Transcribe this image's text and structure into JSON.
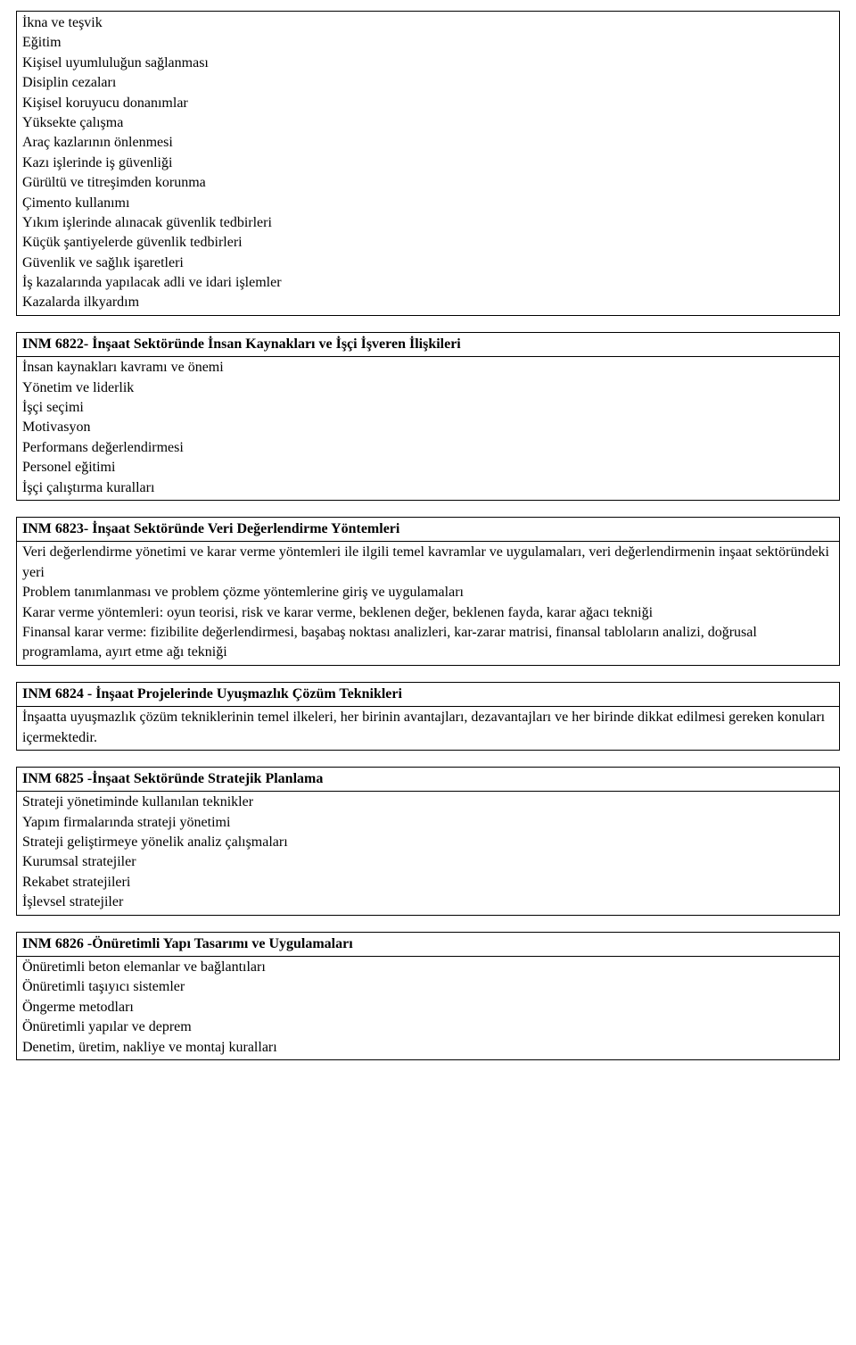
{
  "box0": {
    "lines": [
      "İkna ve teşvik",
      "Eğitim",
      "Kişisel uyumluluğun sağlanması",
      "Disiplin cezaları",
      "Kişisel koruyucu donanımlar",
      "Yüksekte çalışma",
      "Araç kazlarının önlenmesi",
      "Kazı işlerinde iş güvenliği",
      "Gürültü ve titreşimden korunma",
      "Çimento kullanımı",
      "Yıkım işlerinde alınacak güvenlik tedbirleri",
      "Küçük şantiyelerde güvenlik tedbirleri",
      "Güvenlik ve sağlık işaretleri",
      "İş kazalarında yapılacak adli ve idari işlemler",
      "Kazalarda ilkyardım"
    ]
  },
  "sections": [
    {
      "title": "INM 6822- İnşaat Sektöründe İnsan Kaynakları ve İşçi İşveren İlişkileri",
      "lines": [
        "İnsan kaynakları kavramı ve önemi",
        "Yönetim ve liderlik",
        "İşçi seçimi",
        "Motivasyon",
        "Performans değerlendirmesi",
        "Personel eğitimi",
        "İşçi çalıştırma kuralları"
      ]
    },
    {
      "title": "INM 6823- İnşaat Sektöründe Veri Değerlendirme Yöntemleri",
      "lines": [
        "Veri değerlendirme yönetimi ve karar verme yöntemleri ile ilgili temel kavramlar ve uygulamaları, veri değerlendirmenin inşaat sektöründeki yeri",
        " Problem tanımlanması ve problem çözme yöntemlerine giriş ve uygulamaları",
        " Karar verme yöntemleri: oyun teorisi, risk ve karar verme, beklenen değer, beklenen fayda, karar ağacı tekniği",
        " Finansal karar verme: fizibilite değerlendirmesi, başabaş noktası analizleri, kar-zarar matrisi, finansal tabloların analizi, doğrusal programlama, ayırt etme ağı tekniği"
      ]
    },
    {
      "title": "INM 6824 - İnşaat Projelerinde Uyuşmazlık Çözüm Teknikleri",
      "lines": [
        "İnşaatta uyuşmazlık çözüm tekniklerinin temel ilkeleri, her birinin avantajları, dezavantajları ve her birinde dikkat edilmesi gereken konuları içermektedir."
      ]
    },
    {
      "title": "INM 6825 -İnşaat Sektöründe Stratejik Planlama",
      "lines": [
        "Strateji yönetiminde kullanılan teknikler",
        " Yapım firmalarında strateji yönetimi",
        " Strateji geliştirmeye yönelik analiz çalışmaları",
        " Kurumsal stratejiler",
        " Rekabet stratejileri",
        " İşlevsel stratejiler"
      ]
    },
    {
      "title": "INM 6826 -Önüretimli Yapı Tasarımı ve Uygulamaları",
      "lines": [
        "Önüretimli beton elemanlar ve bağlantıları",
        "Önüretimli taşıyıcı sistemler",
        "Öngerme metodları",
        "Önüretimli yapılar ve deprem",
        "Denetim, üretim, nakliye ve montaj kuralları"
      ]
    }
  ]
}
